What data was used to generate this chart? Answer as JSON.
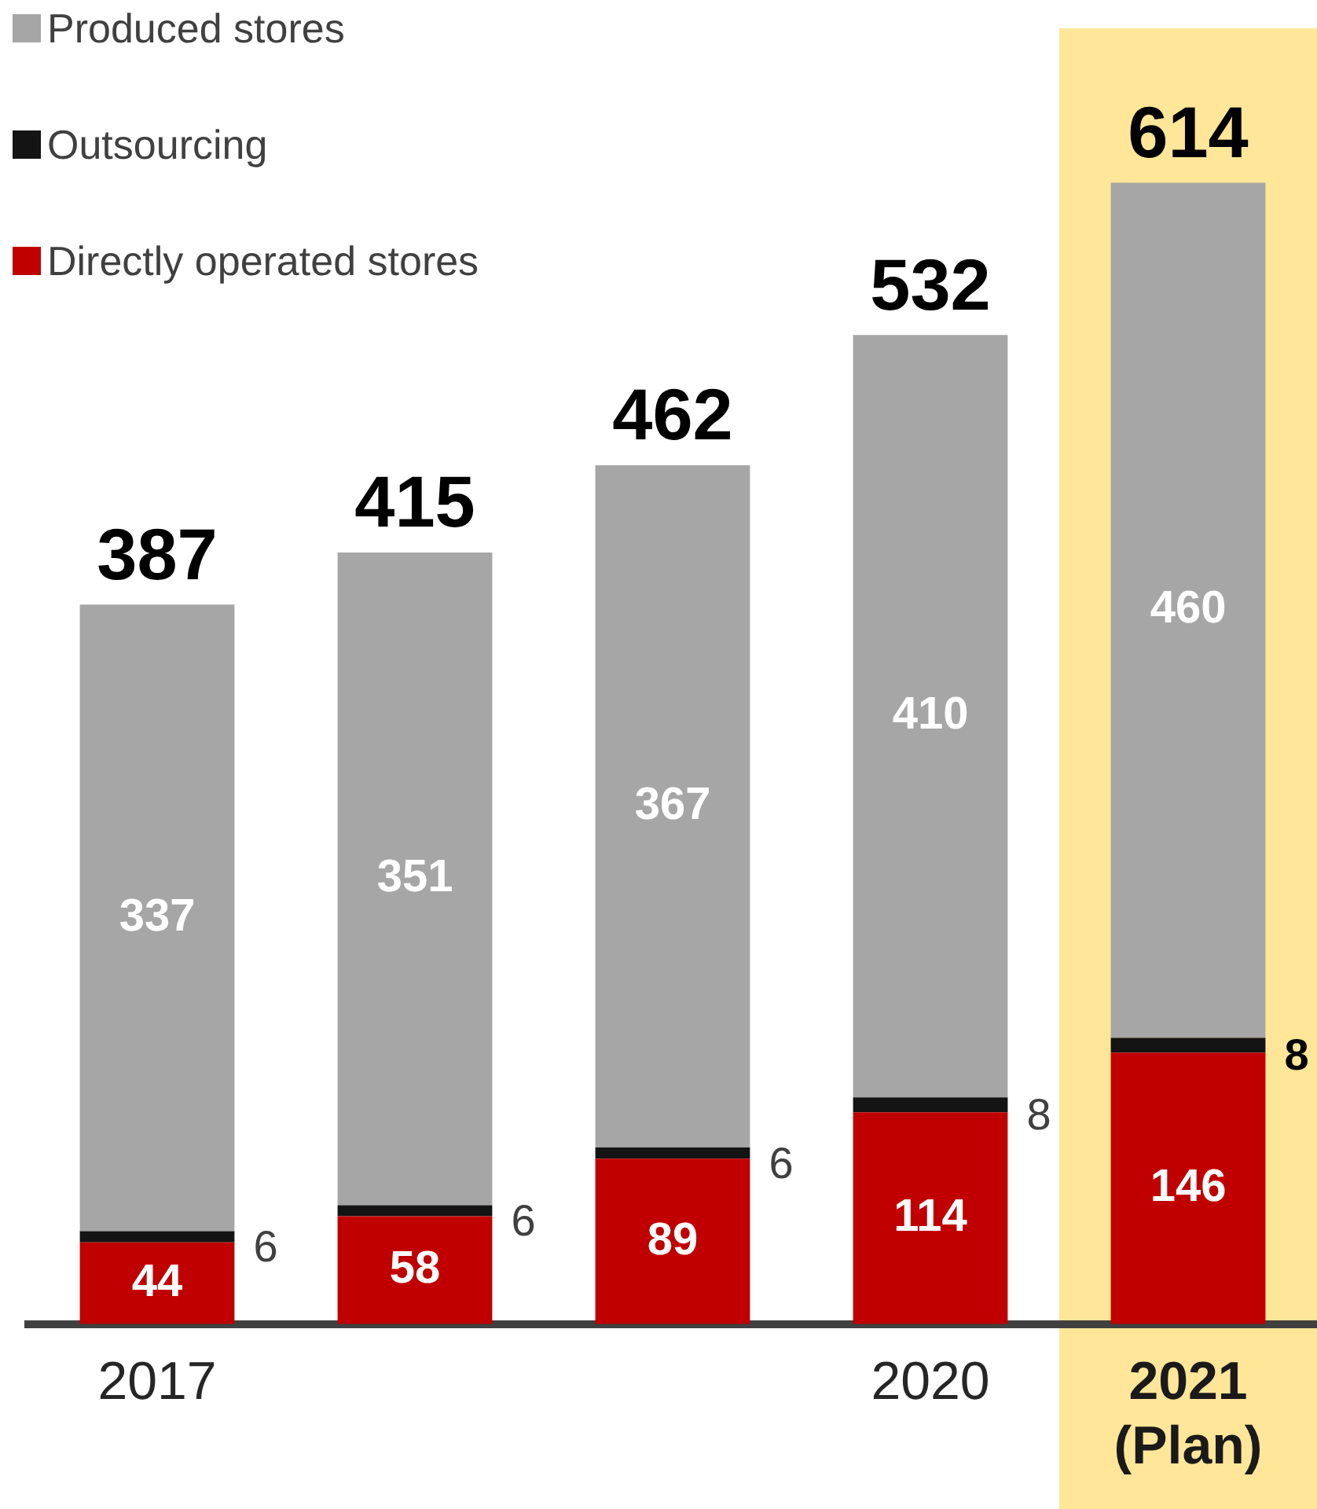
{
  "chart_data": {
    "type": "bar",
    "stacked": true,
    "categories": [
      "2017",
      null,
      null,
      "2020",
      "2021\n(Plan)"
    ],
    "series": [
      {
        "name": "Directly operated stores",
        "color": "#c00000",
        "values": [
          44,
          58,
          89,
          114,
          146
        ]
      },
      {
        "name": "Outsourcing",
        "color": "#141414",
        "values": [
          6,
          6,
          6,
          8,
          8
        ]
      },
      {
        "name": "Produced stores",
        "color": "#a6a6a6",
        "values": [
          337,
          351,
          367,
          410,
          460
        ]
      }
    ],
    "totals": [
      "387",
      "415",
      "462",
      "532",
      "614"
    ],
    "data_labels": true,
    "legend": "top left",
    "grid": false,
    "bands": [
      {
        "axis": "x",
        "from": "2021\n(Plan)",
        "to": "2021\n(Plan)",
        "color": "#ffe699"
      }
    ]
  }
}
